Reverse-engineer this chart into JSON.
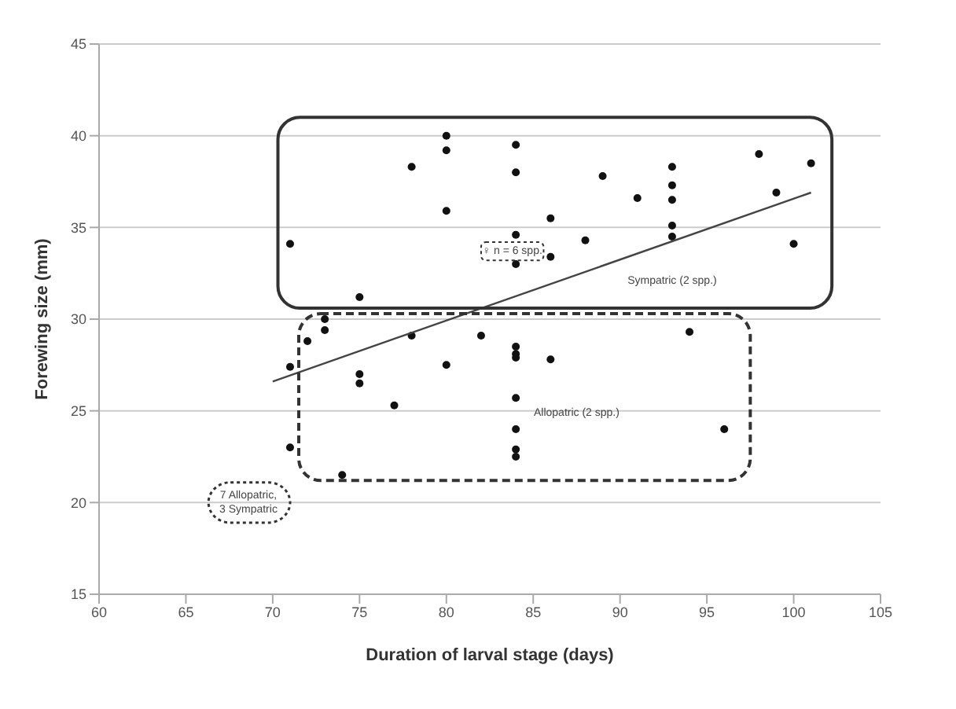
{
  "chart_data": {
    "type": "scatter",
    "xlabel": "Duration of larval stage (days)",
    "ylabel": "Forewing size (mm)",
    "xlim": [
      60,
      105
    ],
    "xticks": [
      60,
      65,
      70,
      75,
      80,
      85,
      90,
      95,
      100,
      105
    ],
    "ylim": [
      15,
      45
    ],
    "yticks": [
      15,
      20,
      25,
      30,
      35,
      40,
      45
    ],
    "grid": "y",
    "marker": "circle",
    "series": [
      {
        "color": "#111111",
        "x": [
          71,
          75,
          78,
          80,
          80,
          80,
          84,
          84,
          84,
          84,
          86,
          86,
          88,
          89,
          91,
          93,
          93,
          93,
          93,
          93,
          98,
          99,
          100,
          101,
          73,
          73,
          72,
          71,
          75,
          75,
          77,
          78,
          80,
          82,
          84,
          84,
          84,
          84,
          84,
          84,
          84,
          86,
          94,
          96,
          71,
          74
        ],
        "values": [
          34.1,
          31.2,
          38.3,
          40.0,
          39.2,
          35.9,
          39.5,
          38.0,
          34.6,
          33.0,
          35.5,
          33.4,
          34.3,
          37.8,
          36.6,
          38.3,
          37.3,
          36.5,
          35.1,
          34.5,
          39.0,
          36.9,
          34.1,
          38.5,
          30.0,
          29.4,
          28.8,
          27.4,
          27.0,
          26.5,
          25.3,
          29.1,
          27.5,
          29.1,
          28.5,
          28.1,
          27.9,
          25.7,
          24.0,
          22.9,
          22.5,
          27.8,
          29.3,
          24.0,
          23.0,
          21.5
        ]
      },
      {
        "type": "line",
        "marker": "none",
        "color": "#444444",
        "x": [
          70,
          101
        ],
        "values": [
          26.6,
          36.9
        ]
      }
    ],
    "annotations": [
      "♀ n = 6 spp.",
      "Sympatric (2 spp.)",
      "Allopatric (2 spp.)",
      "7 Allopatric,",
      "3 Sympatric"
    ]
  }
}
